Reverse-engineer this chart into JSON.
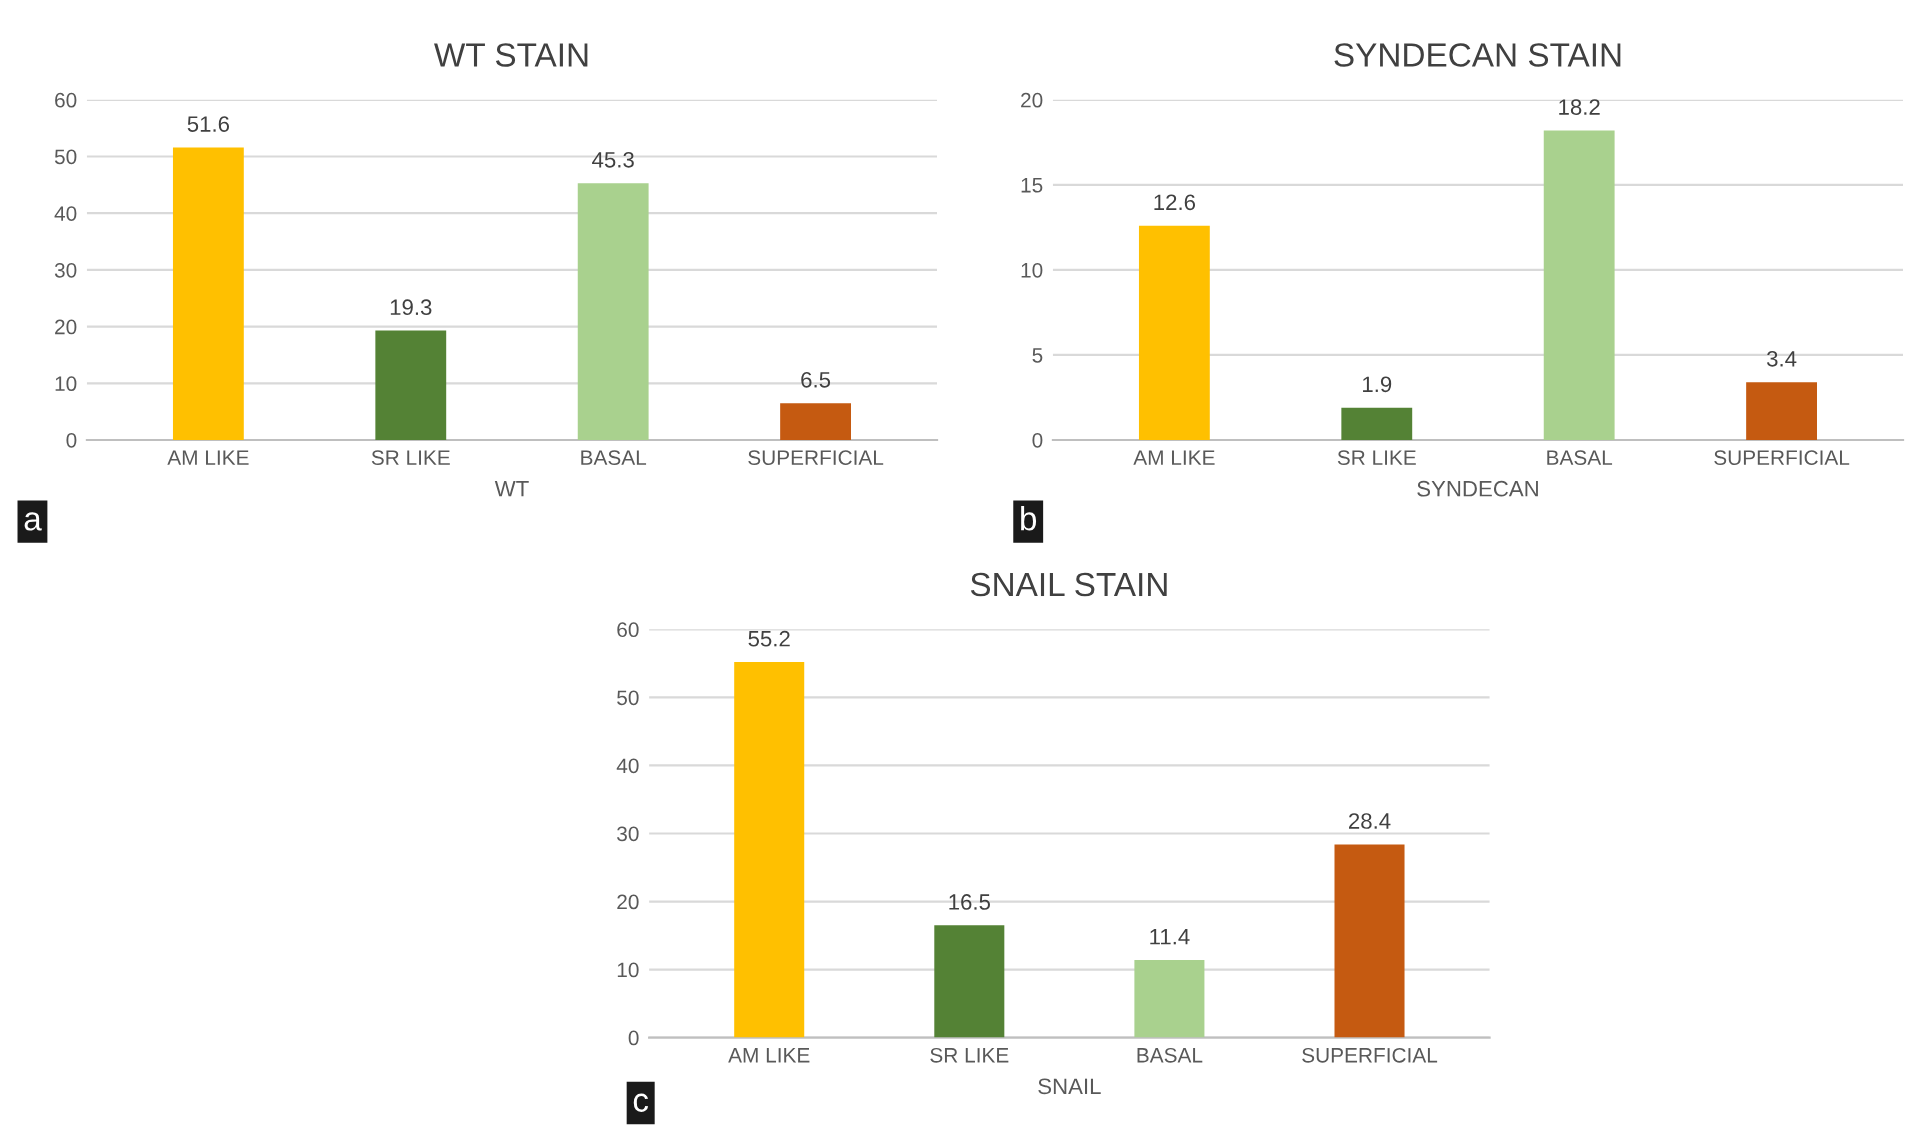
{
  "chart_data": [
    {
      "type": "bar",
      "title": "WT STAIN",
      "xlabel": "WT",
      "categories": [
        "AM LIKE",
        "SR LIKE",
        "BASAL",
        "SUPERFICIAL"
      ],
      "values": [
        51.6,
        19.3,
        45.3,
        6.5
      ],
      "colors": [
        "#ffc000",
        "#548235",
        "#a9d18e",
        "#c55a11"
      ],
      "ylim": [
        0,
        60
      ],
      "yticks": [
        0,
        10,
        20,
        30,
        40,
        50,
        60
      ],
      "grid": "y",
      "data_labels": true,
      "annotations": [
        "a"
      ]
    },
    {
      "type": "bar",
      "title": "SYNDECAN STAIN",
      "xlabel": "SYNDECAN",
      "categories": [
        "AM LIKE",
        "SR LIKE",
        "BASAL",
        "SUPERFICIAL"
      ],
      "values": [
        12.6,
        1.9,
        18.2,
        3.4
      ],
      "colors": [
        "#ffc000",
        "#548235",
        "#a9d18e",
        "#c55a11"
      ],
      "ylim": [
        0,
        20
      ],
      "yticks": [
        0,
        5,
        10,
        15,
        20
      ],
      "grid": "y",
      "data_labels": true,
      "annotations": [
        "b"
      ]
    },
    {
      "type": "bar",
      "title": "SNAIL STAIN",
      "xlabel": "SNAIL",
      "categories": [
        "AM LIKE",
        "SR LIKE",
        "BASAL",
        "SUPERFICIAL"
      ],
      "values": [
        55.2,
        16.5,
        11.4,
        28.4
      ],
      "colors": [
        "#ffc000",
        "#548235",
        "#a9d18e",
        "#c55a11"
      ],
      "ylim": [
        0,
        60
      ],
      "yticks": [
        0,
        10,
        20,
        30,
        40,
        50,
        60
      ],
      "grid": "y",
      "data_labels": true,
      "annotations": [
        "c"
      ]
    }
  ]
}
